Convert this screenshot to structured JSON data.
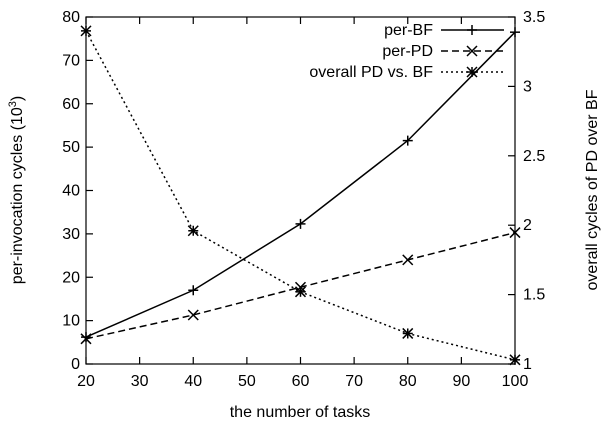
{
  "chart_data": {
    "type": "line",
    "xlabel": "the number of tasks",
    "ylabel": "per-invocation cycles (10",
    "ylabel_sup": "3",
    "ylabel_end": ")",
    "y2label": "overall cycles of PD over BF",
    "xlim": [
      20,
      100
    ],
    "ylim": [
      0,
      80
    ],
    "y2lim": [
      1,
      3.5
    ],
    "xticks": [
      20,
      30,
      40,
      50,
      60,
      70,
      80,
      90,
      100
    ],
    "yticks": [
      0,
      10,
      20,
      30,
      40,
      50,
      60,
      70,
      80
    ],
    "y2ticks": [
      1,
      1.5,
      2,
      2.5,
      3,
      3.5
    ],
    "grid": false,
    "legend_position": "top-right",
    "x": [
      20,
      40,
      60,
      80,
      100
    ],
    "series": [
      {
        "name": "per-BF",
        "axis": "left",
        "dash": "solid",
        "marker": "plus",
        "values": [
          6.2,
          17.0,
          32.3,
          51.5,
          76.5
        ]
      },
      {
        "name": "per-PD",
        "axis": "left",
        "dash": "dashed",
        "marker": "cross",
        "values": [
          5.8,
          11.3,
          17.7,
          24.0,
          30.3
        ]
      },
      {
        "name": "overall PD vs. BF",
        "axis": "right",
        "dash": "dotted",
        "marker": "star",
        "values": [
          3.4,
          1.96,
          1.52,
          1.22,
          1.03
        ]
      }
    ]
  }
}
